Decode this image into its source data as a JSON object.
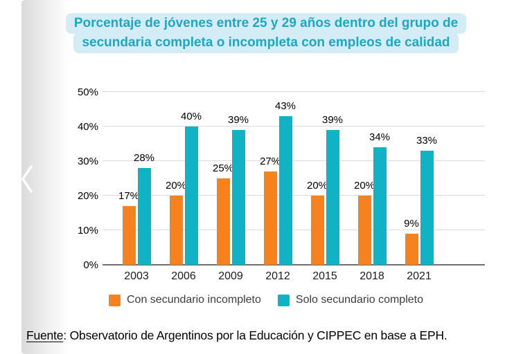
{
  "title": {
    "line1": "Porcentaje de jóvenes entre 25 y 29 años dentro del grupo de",
    "line2": "secundaria completa o incompleta con empleos de calidad",
    "text_color": "#1EA6C5",
    "highlight_color": "#D4ECF5"
  },
  "chart_data": {
    "type": "bar",
    "title": "Porcentaje de jóvenes entre 25 y 29 años dentro del grupo de secundaria completa o incompleta con empleos de calidad",
    "categories": [
      "2003",
      "2006",
      "2009",
      "2012",
      "2015",
      "2018",
      "2021"
    ],
    "series": [
      {
        "name": "Con secundario incompleto",
        "color": "#F6821F",
        "values": [
          17,
          20,
          25,
          27,
          20,
          20,
          9
        ]
      },
      {
        "name": "Solo secundario completo",
        "color": "#12B2C5",
        "values": [
          28,
          40,
          39,
          43,
          39,
          34,
          33
        ]
      }
    ],
    "ylim": [
      0,
      50
    ],
    "yticks": [
      "0%",
      "10%",
      "20%",
      "30%",
      "40%",
      "50%"
    ],
    "value_suffix": "%",
    "grid": true,
    "legend_position": "bottom"
  },
  "legend": {
    "items": [
      {
        "label": "Con secundario incompleto",
        "color": "#F6821F"
      },
      {
        "label": "Solo secundario completo",
        "color": "#12B2C5"
      }
    ]
  },
  "footer": {
    "source_label": "Fuente",
    "source_rest": ": Observatorio de Argentinos por la Educación y CIPPEC en base a EPH."
  }
}
